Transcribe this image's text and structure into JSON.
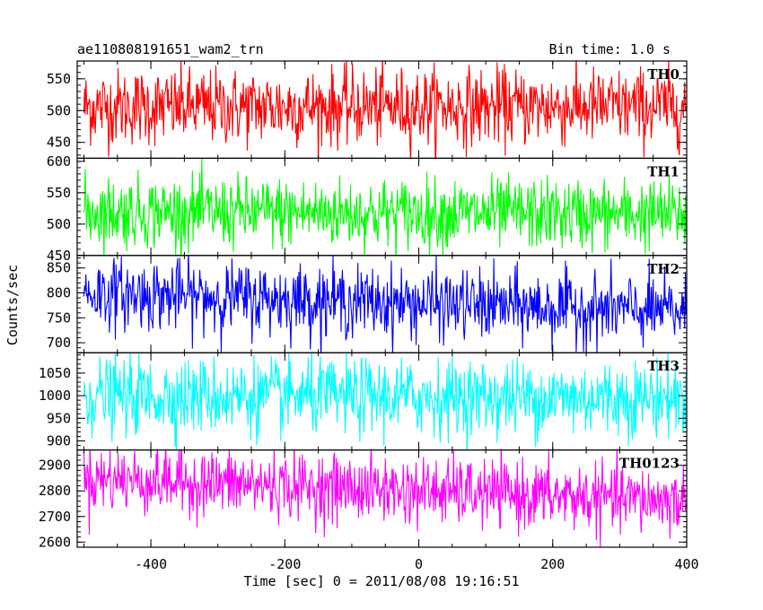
{
  "chart_data": {
    "type": "line",
    "title_left": "ae110808191651_wam2_trn",
    "title_right": "Bin time: 1.0 s",
    "xlabel": "Time [sec] 0 = 2011/08/08 19:16:51",
    "ylabel": "Counts/sec",
    "xlim": [
      -510,
      400
    ],
    "xticks": [
      -400,
      -200,
      0,
      200,
      400
    ],
    "x_start": -500,
    "x_end": 399,
    "x_step": 1,
    "panels": [
      {
        "name": "TH0",
        "color": "#ff0000",
        "ylim": [
          425,
          578
        ],
        "yticks": [
          450,
          500,
          550
        ],
        "trend_start": 506,
        "trend_end": 506,
        "noise_sd": 30
      },
      {
        "name": "TH1",
        "color": "#00ff00",
        "ylim": [
          450,
          605
        ],
        "yticks": [
          450,
          500,
          550,
          600
        ],
        "trend_start": 520,
        "trend_end": 515,
        "noise_sd": 28
      },
      {
        "name": "TH2",
        "color": "#0000ff",
        "ylim": [
          680,
          875
        ],
        "yticks": [
          700,
          750,
          800,
          850
        ],
        "trend_start": 800,
        "trend_end": 762,
        "noise_sd": 35
      },
      {
        "name": "TH3",
        "color": "#00ffff",
        "ylim": [
          880,
          1095
        ],
        "yticks": [
          900,
          950,
          1000,
          1050
        ],
        "trend_start": 1000,
        "trend_end": 995,
        "noise_sd": 42
      },
      {
        "name": "TH0123",
        "color": "#ff00ff",
        "ylim": [
          2580,
          2960
        ],
        "yticks": [
          2600,
          2700,
          2800,
          2900
        ],
        "trend_start": 2850,
        "trend_end": 2760,
        "noise_sd": 65
      }
    ]
  }
}
